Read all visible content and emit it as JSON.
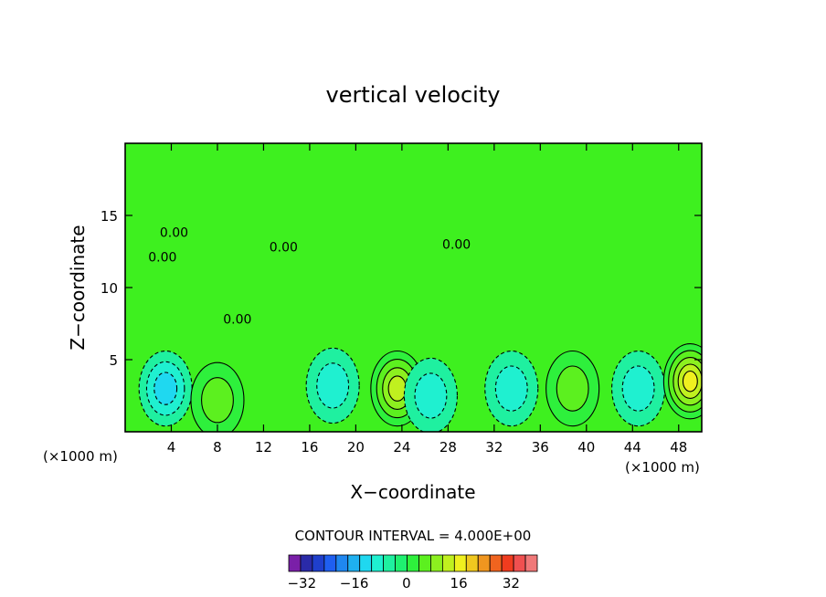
{
  "chart_data": {
    "type": "heatmap",
    "title": "vertical velocity",
    "xlabel": "X−coordinate",
    "ylabel": "Z−coordinate",
    "x_unit_left": "(×1000 m)",
    "x_unit_right": "(×1000 m)",
    "xlim": [
      0,
      50
    ],
    "ylim": [
      0,
      20
    ],
    "x_ticks": [
      4,
      8,
      12,
      16,
      20,
      24,
      28,
      32,
      36,
      40,
      44,
      48
    ],
    "y_ticks": [
      5,
      10,
      15
    ],
    "contour_labels": [
      "0.00",
      "0.00",
      "0.00",
      "0.00",
      "0.00"
    ],
    "contour_interval_text": "CONTOUR INTERVAL = 4.000E+00",
    "colorbar": {
      "tick_labels": [
        "−32",
        "−16",
        "0",
        "16",
        "32"
      ],
      "tick_values": [
        -32,
        -16,
        0,
        16,
        32
      ],
      "range": [
        -36,
        40
      ],
      "colors": [
        "#7a1fa8",
        "#2a2aa8",
        "#1f3fcc",
        "#1f5ff0",
        "#1f87f0",
        "#1fb0f0",
        "#1fd8f0",
        "#1ff0d0",
        "#1ff0a0",
        "#1ff070",
        "#2ef03c",
        "#5cf01f",
        "#8cf01f",
        "#c0f01f",
        "#f0f01f",
        "#f0c81f",
        "#f0961f",
        "#f0641f",
        "#f03c1f",
        "#f05050",
        "#f07878"
      ]
    },
    "features": [
      {
        "x": 3.5,
        "z": 3.0,
        "value": -10
      },
      {
        "x": 8.0,
        "z": 2.2,
        "value": 8
      },
      {
        "x": 18.0,
        "z": 3.2,
        "value": -8
      },
      {
        "x": 23.6,
        "z": 3.0,
        "value": 14
      },
      {
        "x": 26.5,
        "z": 2.5,
        "value": -6
      },
      {
        "x": 33.5,
        "z": 3.0,
        "value": -6
      },
      {
        "x": 38.8,
        "z": 3.0,
        "value": 8
      },
      {
        "x": 44.5,
        "z": 3.0,
        "value": -6
      },
      {
        "x": 49.0,
        "z": 3.5,
        "value": 18
      }
    ]
  }
}
